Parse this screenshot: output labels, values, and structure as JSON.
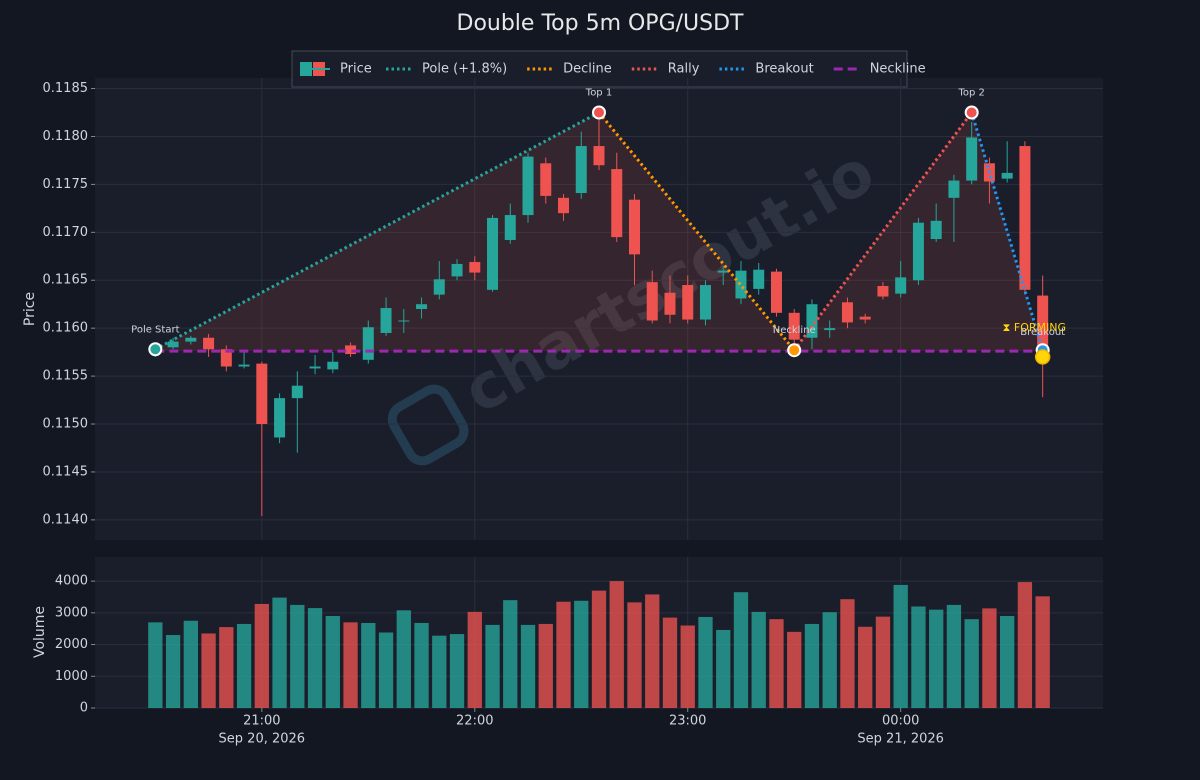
{
  "chart_data": {
    "type": "candlestick",
    "title": "Double Top 5m OPG/USDT",
    "watermark": "chartscout.io",
    "y_label": "Price",
    "volume_label": "Volume",
    "price_legend": "Price",
    "up_color": "#26a69a",
    "down_color": "#ef5350",
    "x": [
      "2026-09-20 20:30",
      "2026-09-20 20:35",
      "2026-09-20 20:40",
      "2026-09-20 20:45",
      "2026-09-20 20:50",
      "2026-09-20 20:55",
      "2026-09-20 21:00",
      "2026-09-20 21:05",
      "2026-09-20 21:10",
      "2026-09-20 21:15",
      "2026-09-20 21:20",
      "2026-09-20 21:25",
      "2026-09-20 21:30",
      "2026-09-20 21:35",
      "2026-09-20 21:40",
      "2026-09-20 21:45",
      "2026-09-20 21:50",
      "2026-09-20 21:55",
      "2026-09-20 22:00",
      "2026-09-20 22:05",
      "2026-09-20 22:10",
      "2026-09-20 22:15",
      "2026-09-20 22:20",
      "2026-09-20 22:25",
      "2026-09-20 22:30",
      "2026-09-20 22:35",
      "2026-09-20 22:40",
      "2026-09-20 22:45",
      "2026-09-20 22:50",
      "2026-09-20 22:55",
      "2026-09-20 23:00",
      "2026-09-20 23:05",
      "2026-09-20 23:10",
      "2026-09-20 23:15",
      "2026-09-20 23:20",
      "2026-09-20 23:25",
      "2026-09-20 23:30",
      "2026-09-20 23:35",
      "2026-09-20 23:40",
      "2026-09-20 23:45",
      "2026-09-20 23:50",
      "2026-09-20 23:55",
      "2026-09-21 00:00",
      "2026-09-21 00:05",
      "2026-09-21 00:10",
      "2026-09-21 00:15",
      "2026-09-21 00:20",
      "2026-09-21 00:25",
      "2026-09-21 00:30",
      "2026-09-21 00:35",
      "2026-09-21 00:40"
    ],
    "open": [
      0.11575,
      0.1158,
      0.11586,
      0.1159,
      0.11578,
      0.1156,
      0.11563,
      0.11486,
      0.11527,
      0.11558,
      0.11557,
      0.11582,
      0.11567,
      0.11595,
      0.11607,
      0.1162,
      0.11635,
      0.11654,
      0.11669,
      0.1164,
      0.11692,
      0.11718,
      0.11772,
      0.11736,
      0.11741,
      0.1179,
      0.11766,
      0.11734,
      0.11648,
      0.11637,
      0.11645,
      0.11609,
      0.11658,
      0.11631,
      0.11641,
      0.11659,
      0.11616,
      0.1159,
      0.11598,
      0.11627,
      0.11612,
      0.11644,
      0.11636,
      0.1165,
      0.11693,
      0.11736,
      0.11754,
      0.11772,
      0.11756,
      0.1179,
      0.11634
    ],
    "high": [
      0.11583,
      0.1159,
      0.11592,
      0.11594,
      0.11582,
      0.11575,
      0.11565,
      0.11532,
      0.11555,
      0.11572,
      0.11575,
      0.11585,
      0.11608,
      0.11632,
      0.1162,
      0.11632,
      0.1167,
      0.11672,
      0.11675,
      0.11718,
      0.1173,
      0.11783,
      0.11778,
      0.1174,
      0.11805,
      0.1182,
      0.11783,
      0.1174,
      0.1166,
      0.11655,
      0.11655,
      0.1165,
      0.11665,
      0.1167,
      0.11668,
      0.11662,
      0.1162,
      0.1163,
      0.11608,
      0.11632,
      0.11615,
      0.11648,
      0.1167,
      0.11715,
      0.1173,
      0.1176,
      0.11815,
      0.11778,
      0.11795,
      0.11795,
      0.11655
    ],
    "low": [
      0.1157,
      0.11578,
      0.11583,
      0.1157,
      0.11555,
      0.11558,
      0.11404,
      0.1148,
      0.1147,
      0.11552,
      0.11553,
      0.1157,
      0.11563,
      0.11592,
      0.11595,
      0.1161,
      0.1163,
      0.1165,
      0.1165,
      0.11638,
      0.11688,
      0.1171,
      0.1173,
      0.11712,
      0.11735,
      0.11765,
      0.1169,
      0.11645,
      0.11605,
      0.11605,
      0.11605,
      0.11603,
      0.11645,
      0.11625,
      0.11635,
      0.11612,
      0.1158,
      0.11578,
      0.1159,
      0.116,
      0.11605,
      0.1163,
      0.11632,
      0.11645,
      0.1169,
      0.1169,
      0.1175,
      0.1173,
      0.11752,
      0.11635,
      0.11528
    ],
    "close": [
      0.1158,
      0.11586,
      0.1159,
      0.11578,
      0.1156,
      0.11562,
      0.115,
      0.11527,
      0.1154,
      0.1156,
      0.11565,
      0.11573,
      0.11601,
      0.11621,
      0.11608,
      0.11625,
      0.11651,
      0.11667,
      0.11658,
      0.11715,
      0.11718,
      0.11779,
      0.11738,
      0.1172,
      0.1179,
      0.1177,
      0.11695,
      0.11677,
      0.11608,
      0.11614,
      0.11609,
      0.11645,
      0.1166,
      0.1166,
      0.11661,
      0.11616,
      0.11588,
      0.11625,
      0.116,
      0.11606,
      0.11609,
      0.11633,
      0.11653,
      0.1171,
      0.11712,
      0.11754,
      0.11799,
      0.11753,
      0.11762,
      0.1164,
      0.11579
    ],
    "volume": [
      2700,
      2300,
      2750,
      2350,
      2550,
      2650,
      3280,
      3480,
      3250,
      3150,
      2900,
      2700,
      2680,
      2380,
      3080,
      2680,
      2280,
      2330,
      3030,
      2620,
      3400,
      2620,
      2650,
      3350,
      3380,
      3700,
      4000,
      3330,
      3580,
      2850,
      2600,
      2870,
      2460,
      3650,
      3030,
      2800,
      2400,
      2650,
      3020,
      3430,
      2560,
      2880,
      3880,
      3200,
      3100,
      3250,
      2800,
      3140,
      2900,
      3970,
      3520
    ],
    "xlim": [
      "2026-09-20 20:13",
      "2026-09-21 00:57"
    ],
    "xticks": [
      {
        "value": "2026-09-20 21:00",
        "label": "21:00"
      },
      {
        "value": "2026-09-20 22:00",
        "label": "22:00"
      },
      {
        "value": "2026-09-20 23:00",
        "label": "23:00"
      },
      {
        "value": "2026-09-21 00:00",
        "label": "00:00"
      }
    ],
    "xtick_dates": [
      {
        "value": "2026-09-20 21:00",
        "label": "Sep 20, 2026"
      },
      {
        "value": "2026-09-21 00:00",
        "label": "Sep 21, 2026"
      }
    ],
    "ylim": [
      0.11379,
      0.11861
    ],
    "yticks": [
      {
        "value": 0.114,
        "label": "0.1140"
      },
      0.1145,
      {
        "value": 0.115,
        "label": "0.1150"
      },
      0.1155,
      {
        "value": 0.116,
        "label": "0.1160"
      },
      0.1165,
      {
        "value": 0.117,
        "label": "0.1170"
      },
      0.1175,
      {
        "value": 0.118,
        "label": "0.1180"
      },
      0.1185
    ],
    "volume_ylim": [
      0,
      4760
    ],
    "volume_yticks": [
      0,
      1000,
      2000,
      3000,
      4000
    ],
    "grid": true,
    "lines": [
      {
        "name": "Pole (+1.8%)",
        "color": "#26a69a",
        "style": "dotted",
        "x": [
          "2026-09-20 20:30",
          "2026-09-20 22:35"
        ],
        "y": [
          0.11578,
          0.11825
        ]
      },
      {
        "name": "Decline",
        "color": "#ff9800",
        "style": "dotted",
        "x": [
          "2026-09-20 22:35",
          "2026-09-20 23:30"
        ],
        "y": [
          0.11825,
          0.11577
        ]
      },
      {
        "name": "Rally",
        "color": "#ef5350",
        "style": "dotted",
        "x": [
          "2026-09-20 23:30",
          "2026-09-21 00:20"
        ],
        "y": [
          0.11577,
          0.11825
        ]
      },
      {
        "name": "Breakout",
        "color": "#2196f3",
        "style": "dotted",
        "x": [
          "2026-09-21 00:20",
          "2026-09-21 00:40"
        ],
        "y": [
          0.11825,
          0.11577
        ]
      },
      {
        "name": "Neckline",
        "color": "#9c27b0",
        "style": "dashed",
        "x": [
          "2026-09-20 20:30",
          "2026-09-21 00:40"
        ],
        "y": [
          0.11576,
          0.11576
        ]
      }
    ],
    "pattern_points": [
      {
        "label": "Pole Start",
        "x": "2026-09-20 20:30",
        "y": 0.11578,
        "color": "#26a69a"
      },
      {
        "label": "Top 1",
        "x": "2026-09-20 22:35",
        "y": 0.11825,
        "color": "#ef5350"
      },
      {
        "label": "Neckline",
        "x": "2026-09-20 23:30",
        "y": 0.11577,
        "color": "#ff9800"
      },
      {
        "label": "Top 2",
        "x": "2026-09-21 00:20",
        "y": 0.11825,
        "color": "#ef5350"
      },
      {
        "label": "Breakout",
        "x": "2026-09-21 00:40",
        "y": 0.11577,
        "color": "#2196f3"
      }
    ],
    "status": {
      "label": "⧗ FORMING",
      "x": "2026-09-21 00:40",
      "y": 0.1157,
      "color": "#ffd60a"
    }
  }
}
